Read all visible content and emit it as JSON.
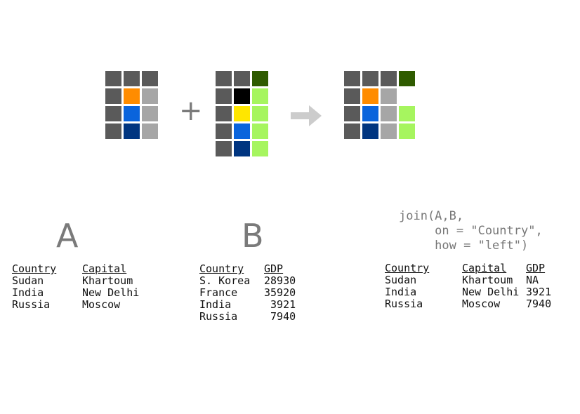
{
  "colors": {
    "key": "#5a5a5a",
    "orange": "#ff8c00",
    "gray": "#a6a6a6",
    "blue": "#0a64dc",
    "navy": "#003580",
    "black": "#000000",
    "yellow": "#ffe600",
    "light_green": "#a6f55f",
    "dark_green": "#2f5b00",
    "arrow": "#cccccc",
    "text_gray": "#7a7a7a"
  },
  "operator": "+",
  "labels": {
    "a": "A",
    "b": "B"
  },
  "code": {
    "line1": "join(A,B,",
    "line2": "     on = \"Country\",",
    "line3": "     how = \"left\")"
  },
  "table_a": {
    "headers": [
      "Country",
      "Capital"
    ],
    "rows": [
      [
        "Sudan",
        "Khartoum"
      ],
      [
        "India",
        "New Delhi"
      ],
      [
        "Russia",
        "Moscow"
      ]
    ]
  },
  "table_b": {
    "headers": [
      "Country",
      "GDP"
    ],
    "rows": [
      [
        "S. Korea",
        "28930"
      ],
      [
        "France",
        "35920"
      ],
      [
        "India",
        "3921"
      ],
      [
        "Russia",
        "7940"
      ]
    ]
  },
  "table_result": {
    "headers": [
      "Country",
      "Capital",
      "GDP"
    ],
    "rows": [
      [
        "Sudan",
        "Khartoum",
        "NA"
      ],
      [
        "India",
        "New Delhi",
        "3921"
      ],
      [
        "Russia",
        "Moscow",
        "7940"
      ]
    ]
  }
}
